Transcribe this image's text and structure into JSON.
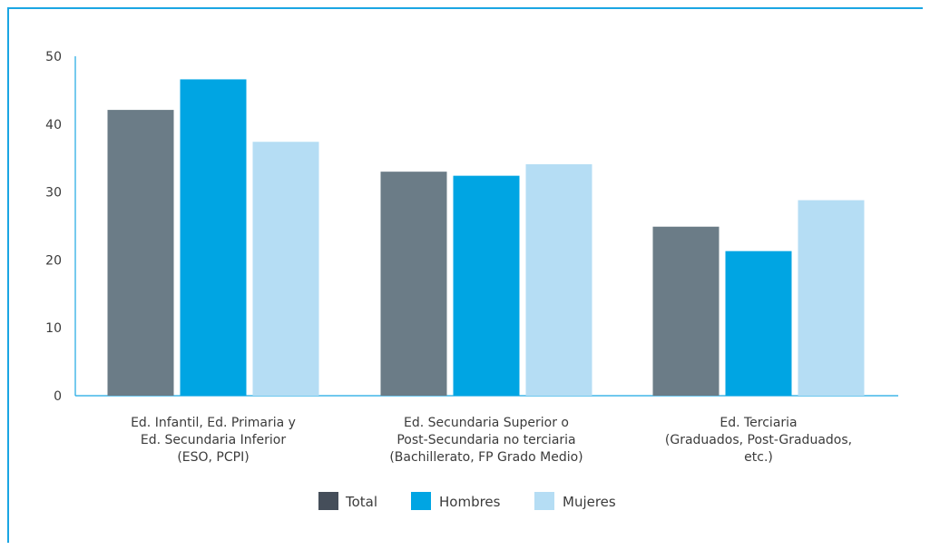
{
  "chart_data": {
    "type": "bar",
    "categories": [
      [
        "Ed. Infantil, Ed. Primaria y",
        "Ed. Secundaria Inferior",
        "(ESO, PCPI)"
      ],
      [
        "Ed. Secundaria Superior o",
        "Post-Secundaria no terciaria",
        "(Bachillerato, FP Grado Medio)"
      ],
      [
        "Ed. Terciaria",
        "(Graduados, Post-Graduados,",
        "etc.)"
      ]
    ],
    "series": [
      {
        "name": "Total",
        "values": [
          42.1,
          33.0,
          24.9
        ],
        "color": "#6b7c87"
      },
      {
        "name": "Hombres",
        "values": [
          46.6,
          32.4,
          21.3
        ],
        "color": "#00a5e3"
      },
      {
        "name": "Mujeres",
        "values": [
          37.4,
          34.1,
          28.8
        ],
        "color": "#b5ddf4"
      }
    ],
    "yticks": [
      "0",
      "10",
      "20",
      "30",
      "40",
      "50"
    ],
    "ylim": [
      0,
      50
    ],
    "legend_placement": "bottom-center",
    "legend_swatch_colors": [
      "#454e5a",
      "#00a5e3",
      "#b5ddf4"
    ],
    "grid": false,
    "axis_color": "#1ba6e3",
    "frame_color": "#1ba6e3"
  }
}
